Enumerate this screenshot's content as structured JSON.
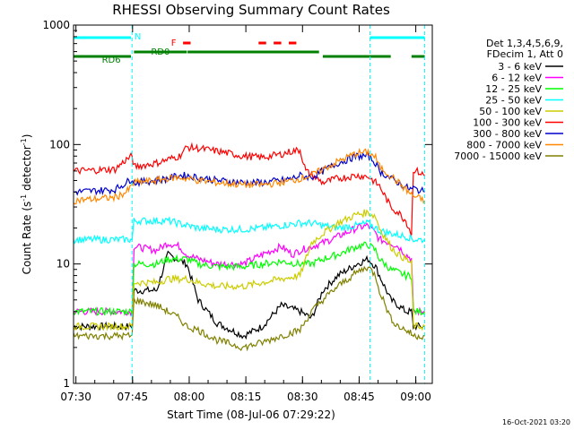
{
  "chart_data": {
    "type": "line",
    "title": "RHESSI Observing Summary Count Rates",
    "xlabel": "Start Time (08-Jul-06 07:29:22)",
    "ylabel_main": "Count Rate (s",
    "ylabel_sup1": "-1",
    "ylabel_mid": " detector",
    "ylabel_sup2": "-1",
    "ylabel_end": ")",
    "y_scale": "log",
    "ylim": [
      1,
      1000
    ],
    "xlim_minutes": [
      0,
      95
    ],
    "x_ticks": [
      {
        "label": "07:30",
        "t": 0.63
      },
      {
        "label": "07:45",
        "t": 15.63
      },
      {
        "label": "08:00",
        "t": 30.63
      },
      {
        "label": "08:15",
        "t": 45.63
      },
      {
        "label": "08:30",
        "t": 60.63
      },
      {
        "label": "08:45",
        "t": 75.63
      },
      {
        "label": "09:00",
        "t": 90.63
      }
    ],
    "y_ticks": [
      {
        "label": "1",
        "v": 1
      },
      {
        "label": "10",
        "v": 10
      },
      {
        "label": "100",
        "v": 100
      },
      {
        "label": "1000",
        "v": 1000
      }
    ],
    "legend_header": [
      "Det 1,3,4,5,6,9,",
      "FDecim 1, Att 0"
    ],
    "series": [
      {
        "name": "3 - 6 keV",
        "color": "#000000",
        "points": [
          [
            0,
            3
          ],
          [
            15.5,
            3
          ],
          [
            16,
            6
          ],
          [
            22,
            6
          ],
          [
            25,
            12
          ],
          [
            30,
            10
          ],
          [
            33,
            5
          ],
          [
            38,
            3.2
          ],
          [
            45,
            2.5
          ],
          [
            50,
            3
          ],
          [
            55,
            4.5
          ],
          [
            60,
            4
          ],
          [
            63,
            3.5
          ],
          [
            66,
            6
          ],
          [
            70,
            8
          ],
          [
            75,
            10
          ],
          [
            78,
            11
          ],
          [
            80,
            9.5
          ],
          [
            81,
            8
          ],
          [
            84,
            5
          ],
          [
            86,
            4.5
          ],
          [
            88,
            4
          ],
          [
            89.5,
            4
          ],
          [
            90,
            3
          ],
          [
            93,
            3
          ]
        ]
      },
      {
        "name": "6 - 12 keV",
        "color": "#ff00ff",
        "points": [
          [
            0,
            4
          ],
          [
            15.5,
            4
          ],
          [
            16,
            14
          ],
          [
            22,
            13
          ],
          [
            25,
            15
          ],
          [
            28,
            14
          ],
          [
            30,
            12
          ],
          [
            33,
            11
          ],
          [
            38,
            10
          ],
          [
            45,
            10
          ],
          [
            50,
            12
          ],
          [
            55,
            14
          ],
          [
            58,
            12
          ],
          [
            60,
            13
          ],
          [
            63,
            14
          ],
          [
            66,
            15
          ],
          [
            70,
            17
          ],
          [
            75,
            20
          ],
          [
            78,
            21
          ],
          [
            80,
            18
          ],
          [
            81,
            16
          ],
          [
            84,
            15
          ],
          [
            86,
            14
          ],
          [
            88,
            12
          ],
          [
            89.5,
            11
          ],
          [
            90,
            4
          ],
          [
            93,
            4
          ]
        ]
      },
      {
        "name": "12 - 25 keV",
        "color": "#00ff00",
        "points": [
          [
            0,
            4
          ],
          [
            15.5,
            4
          ],
          [
            16,
            10
          ],
          [
            22,
            10
          ],
          [
            25,
            11
          ],
          [
            30,
            11
          ],
          [
            33,
            10
          ],
          [
            38,
            9.5
          ],
          [
            45,
            9.5
          ],
          [
            50,
            10
          ],
          [
            55,
            10.5
          ],
          [
            60,
            10
          ],
          [
            63,
            10
          ],
          [
            66,
            11
          ],
          [
            70,
            12
          ],
          [
            75,
            14
          ],
          [
            78,
            14.5
          ],
          [
            80,
            13
          ],
          [
            81,
            11
          ],
          [
            84,
            9
          ],
          [
            86,
            8.5
          ],
          [
            88,
            8
          ],
          [
            89.5,
            8
          ],
          [
            90,
            4
          ],
          [
            93,
            4
          ]
        ]
      },
      {
        "name": "25 - 50 keV",
        "color": "#00ffff",
        "points": [
          [
            0,
            16
          ],
          [
            15.5,
            16
          ],
          [
            16,
            23
          ],
          [
            22,
            23
          ],
          [
            25,
            23
          ],
          [
            30,
            21
          ],
          [
            33,
            20
          ],
          [
            38,
            19.5
          ],
          [
            45,
            19.5
          ],
          [
            50,
            20
          ],
          [
            55,
            21
          ],
          [
            60,
            22
          ],
          [
            63,
            22
          ],
          [
            66,
            21
          ],
          [
            70,
            20
          ],
          [
            75,
            21
          ],
          [
            78,
            22
          ],
          [
            80,
            20
          ],
          [
            81,
            19
          ],
          [
            84,
            18
          ],
          [
            86,
            17.5
          ],
          [
            88,
            17
          ],
          [
            89.5,
            16.5
          ],
          [
            90,
            16
          ],
          [
            93,
            16
          ]
        ]
      },
      {
        "name": "50 - 100 keV",
        "color": "#cccc00",
        "points": [
          [
            0,
            3
          ],
          [
            15.5,
            3
          ],
          [
            16,
            7
          ],
          [
            22,
            7
          ],
          [
            25,
            7.5
          ],
          [
            30,
            7.5
          ],
          [
            33,
            7
          ],
          [
            38,
            6.5
          ],
          [
            45,
            6.5
          ],
          [
            50,
            7
          ],
          [
            55,
            7.5
          ],
          [
            60,
            8
          ],
          [
            63,
            15
          ],
          [
            66,
            18
          ],
          [
            70,
            22
          ],
          [
            75,
            26
          ],
          [
            78,
            27
          ],
          [
            80,
            25
          ],
          [
            81,
            20
          ],
          [
            84,
            14
          ],
          [
            86,
            12
          ],
          [
            88,
            11
          ],
          [
            89.5,
            10
          ],
          [
            90,
            3
          ],
          [
            93,
            3
          ]
        ]
      },
      {
        "name": "100 - 300 keV",
        "color": "#ff0000",
        "points": [
          [
            0,
            60
          ],
          [
            11,
            62
          ],
          [
            14,
            75
          ],
          [
            15.5,
            80
          ],
          [
            16,
            65
          ],
          [
            22,
            70
          ],
          [
            25,
            75
          ],
          [
            28,
            80
          ],
          [
            30,
            95
          ],
          [
            33,
            93
          ],
          [
            38,
            88
          ],
          [
            45,
            80
          ],
          [
            50,
            78
          ],
          [
            55,
            83
          ],
          [
            58,
            88
          ],
          [
            60,
            90
          ],
          [
            61.5,
            60
          ],
          [
            66,
            48
          ],
          [
            70,
            52
          ],
          [
            75,
            55
          ],
          [
            78,
            54
          ],
          [
            80,
            48
          ],
          [
            81,
            45
          ],
          [
            84,
            30
          ],
          [
            86,
            27
          ],
          [
            88,
            23
          ],
          [
            89.5,
            18
          ],
          [
            90,
            62
          ],
          [
            93,
            55
          ]
        ]
      },
      {
        "name": "300 - 800 keV",
        "color": "#0000cc",
        "points": [
          [
            0,
            40
          ],
          [
            11,
            42
          ],
          [
            14,
            48
          ],
          [
            15.5,
            52
          ],
          [
            16,
            48
          ],
          [
            22,
            50
          ],
          [
            25,
            52
          ],
          [
            28,
            55
          ],
          [
            30,
            55
          ],
          [
            33,
            53
          ],
          [
            38,
            50
          ],
          [
            45,
            48
          ],
          [
            50,
            48
          ],
          [
            55,
            50
          ],
          [
            58,
            52
          ],
          [
            60,
            55
          ],
          [
            63,
            53
          ],
          [
            66,
            60
          ],
          [
            70,
            70
          ],
          [
            75,
            80
          ],
          [
            78,
            80
          ],
          [
            80,
            70
          ],
          [
            81,
            60
          ],
          [
            84,
            52
          ],
          [
            86,
            48
          ],
          [
            88,
            44
          ],
          [
            89.5,
            42
          ],
          [
            90,
            43
          ],
          [
            93,
            40
          ]
        ]
      },
      {
        "name": "800 - 7000 keV",
        "color": "#ff8800",
        "points": [
          [
            0,
            34
          ],
          [
            11,
            36
          ],
          [
            14,
            40
          ],
          [
            15.5,
            45
          ],
          [
            16,
            48
          ],
          [
            22,
            50
          ],
          [
            25,
            52
          ],
          [
            28,
            53
          ],
          [
            30,
            52
          ],
          [
            33,
            50
          ],
          [
            38,
            48
          ],
          [
            45,
            46
          ],
          [
            50,
            46
          ],
          [
            55,
            48
          ],
          [
            58,
            50
          ],
          [
            60,
            52
          ],
          [
            63,
            55
          ],
          [
            66,
            62
          ],
          [
            70,
            72
          ],
          [
            75,
            85
          ],
          [
            78,
            86
          ],
          [
            80,
            78
          ],
          [
            81,
            65
          ],
          [
            84,
            55
          ],
          [
            86,
            48
          ],
          [
            88,
            42
          ],
          [
            89.5,
            38
          ],
          [
            90,
            37
          ],
          [
            93,
            34
          ]
        ]
      },
      {
        "name": "7000 - 15000 keV",
        "color": "#808000",
        "points": [
          [
            0,
            2.5
          ],
          [
            15.5,
            2.5
          ],
          [
            16,
            5
          ],
          [
            22,
            4.5
          ],
          [
            25,
            4
          ],
          [
            28,
            3.5
          ],
          [
            30,
            3
          ],
          [
            33,
            2.8
          ],
          [
            38,
            2.3
          ],
          [
            45,
            2
          ],
          [
            50,
            2.2
          ],
          [
            55,
            2.5
          ],
          [
            60,
            2.8
          ],
          [
            63,
            4
          ],
          [
            66,
            5
          ],
          [
            70,
            6.5
          ],
          [
            75,
            8.5
          ],
          [
            78,
            9.5
          ],
          [
            80,
            8
          ],
          [
            81,
            6
          ],
          [
            84,
            3.5
          ],
          [
            86,
            3
          ],
          [
            88,
            2.8
          ],
          [
            89.5,
            2.6
          ],
          [
            90,
            2.5
          ],
          [
            93,
            2.5
          ]
        ]
      }
    ],
    "flags": {
      "N_label": "N",
      "F_label": "F",
      "RD0_label": "RD0",
      "RD6_label": "RD6",
      "night_color": "#00ffff",
      "flare_color": "#ff0000",
      "data_color": "#008000",
      "night_bars": [
        [
          0,
          15.2
        ],
        [
          78.5,
          93
        ]
      ],
      "flare_bars": [
        [
          29,
          31
        ],
        [
          49,
          51
        ],
        [
          53,
          55
        ],
        [
          57,
          59
        ]
      ],
      "rd0_bars": [
        [
          16,
          30
        ],
        [
          30.2,
          65
        ]
      ],
      "rd6_bars": [
        [
          0,
          15.2
        ],
        [
          66,
          84
        ],
        [
          89.5,
          93
        ]
      ],
      "night_lines": [
        15.5,
        78.5,
        93
      ]
    }
  },
  "timestamp": "16-Oct-2021 03:20"
}
